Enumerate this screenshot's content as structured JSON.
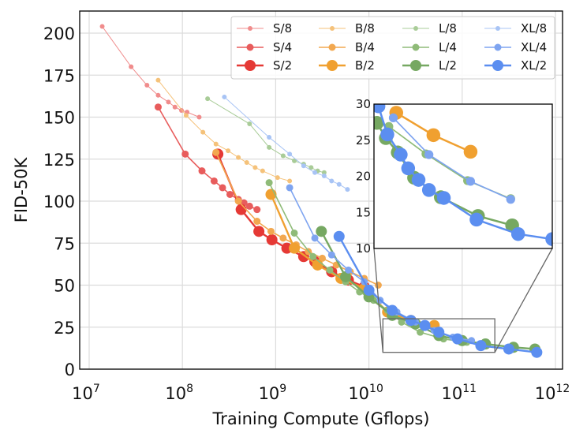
{
  "chart_data": {
    "type": "line",
    "title": "",
    "xlabel": "Training Compute (Gflops)",
    "ylabel": "FID-50K",
    "xscale": "log",
    "xlim": [
      10000000.0,
      1000000000000.0
    ],
    "ylim": [
      0,
      210
    ],
    "xticks": [
      7,
      8,
      9,
      10,
      11,
      12
    ],
    "xtick_labels": [
      "10^7",
      "10^8",
      "10^9",
      "10^10",
      "10^11",
      "10^12"
    ],
    "yticks": [
      0,
      25,
      50,
      75,
      100,
      125,
      150,
      175,
      200
    ],
    "ytick_labels": [
      "0",
      "25",
      "50",
      "75",
      "100",
      "125",
      "150",
      "175",
      "200"
    ],
    "grid": true,
    "legend": {
      "placement": "top-right",
      "columns": 4
    },
    "series": [
      {
        "name": "S/8",
        "color": "#f08c8c",
        "size": "small",
        "log10_x": [
          7.14,
          7.45,
          7.62,
          7.74,
          7.85,
          7.92,
          7.99,
          8.05,
          8.18
        ],
        "y": [
          204,
          180,
          169,
          163,
          159,
          156,
          154,
          153,
          150
        ]
      },
      {
        "name": "S/4",
        "color": "#e85c5c",
        "size": "medium",
        "log10_x": [
          7.74,
          8.03,
          8.21,
          8.34,
          8.43,
          8.51,
          8.6,
          8.66,
          8.72,
          8.8
        ],
        "y": [
          156,
          128,
          118,
          112,
          108,
          104,
          101,
          99,
          97,
          95
        ]
      },
      {
        "name": "S/2",
        "color": "#e53935",
        "size": "large",
        "log10_x": [
          8.38,
          8.63,
          8.82,
          8.96,
          9.12,
          9.3,
          9.42,
          9.6,
          9.78,
          9.95
        ],
        "y": [
          128,
          95,
          82,
          77,
          72,
          67,
          64,
          58,
          53,
          49
        ]
      },
      {
        "name": "B/8",
        "color": "#f5c27a",
        "size": "small",
        "log10_x": [
          7.74,
          8.04,
          8.22,
          8.36,
          8.49,
          8.6,
          8.69,
          8.78,
          8.86,
          9.02,
          9.15
        ],
        "y": [
          172,
          151,
          141,
          134,
          130,
          126,
          123,
          120,
          118,
          114,
          112
        ]
      },
      {
        "name": "B/4",
        "color": "#f2a850",
        "size": "medium",
        "log10_x": [
          8.36,
          8.6,
          8.8,
          8.95,
          9.08,
          9.22,
          9.35,
          9.5,
          9.65,
          9.8,
          9.95,
          10.1
        ],
        "y": [
          129,
          100,
          88,
          82,
          78,
          74,
          70,
          66,
          62,
          58,
          54,
          50
        ]
      },
      {
        "name": "B/2",
        "color": "#f0a030",
        "size": "large",
        "log10_x": [
          8.95,
          9.2,
          9.45,
          9.7,
          9.95,
          10.2,
          10.45,
          10.7
        ],
        "y": [
          104,
          72,
          62,
          54,
          48,
          34,
          29,
          26
        ]
      },
      {
        "name": "L/8",
        "color": "#a9cc98",
        "size": "small",
        "log10_x": [
          8.27,
          8.72,
          8.93,
          9.08,
          9.2,
          9.3,
          9.38,
          9.45,
          9.52
        ],
        "y": [
          161,
          146,
          132,
          127,
          124,
          122,
          120,
          118,
          117
        ]
      },
      {
        "name": "L/4",
        "color": "#8fbb78",
        "size": "medium",
        "log10_x": [
          8.93,
          9.2,
          9.4,
          9.58,
          9.75,
          9.9,
          10.05,
          10.2,
          10.35,
          10.55,
          10.8,
          11.05
        ],
        "y": [
          111,
          81,
          67,
          59,
          52,
          46,
          41,
          35,
          28,
          22,
          18,
          16
        ]
      },
      {
        "name": "L/2",
        "color": "#76a862",
        "size": "large",
        "log10_x": [
          9.49,
          9.75,
          10.0,
          10.25,
          10.5,
          10.75,
          11.0,
          11.25,
          11.55,
          11.78
        ],
        "y": [
          82,
          55,
          43,
          32,
          27,
          20,
          17,
          15,
          13,
          12
        ]
      },
      {
        "name": "XL/8",
        "color": "#a8c4f5",
        "size": "small",
        "log10_x": [
          8.45,
          8.93,
          9.15,
          9.3,
          9.42,
          9.52,
          9.6,
          9.68,
          9.77
        ],
        "y": [
          162,
          138,
          128,
          121,
          117,
          115,
          112,
          110,
          107
        ]
      },
      {
        "name": "XL/4",
        "color": "#7ea4f0",
        "size": "medium",
        "log10_x": [
          9.15,
          9.42,
          9.6,
          9.78,
          9.95,
          10.12,
          10.3,
          10.5,
          10.7,
          10.9,
          11.1
        ],
        "y": [
          108,
          78,
          68,
          59,
          52,
          41,
          34,
          28,
          23,
          19,
          17
        ]
      },
      {
        "name": "XL/2",
        "color": "#5b8ef0",
        "size": "large",
        "log10_x": [
          9.68,
          10.0,
          10.25,
          10.45,
          10.6,
          10.75,
          10.95,
          11.2,
          11.5,
          11.8
        ],
        "y": [
          79,
          47,
          35,
          29,
          26,
          22,
          18,
          14,
          12,
          10
        ]
      }
    ],
    "inset": {
      "xlim_log10": [
        10.15,
        11.35
      ],
      "ylim": [
        10,
        30
      ],
      "yticks": [
        10,
        15,
        20,
        25,
        30
      ],
      "ytick_labels": [
        "10",
        "15",
        "20",
        "25",
        "30"
      ],
      "series": [
        {
          "name": "B/2",
          "log10_x": [
            10.3,
            10.55,
            10.8
          ],
          "y": [
            28.8,
            25.7,
            23.4
          ]
        },
        {
          "name": "L/4",
          "log10_x": [
            10.25,
            10.5,
            10.78,
            11.07
          ],
          "y": [
            26.9,
            23.1,
            19.4,
            16.9
          ]
        },
        {
          "name": "XL/4",
          "log10_x": [
            10.28,
            10.52,
            10.8,
            11.07
          ],
          "y": [
            28.1,
            23.0,
            19.3,
            16.8
          ]
        },
        {
          "name": "L/2",
          "log10_x": [
            10.17,
            10.23,
            10.31,
            10.42,
            10.6,
            10.85,
            11.08
          ],
          "y": [
            27.4,
            25.3,
            23.3,
            19.8,
            17.1,
            14.5,
            13.2
          ]
        },
        {
          "name": "XL/2",
          "log10_x": [
            10.18,
            10.24,
            10.33,
            10.38,
            10.45,
            10.52,
            10.62,
            10.84,
            11.12,
            11.35
          ],
          "y": [
            29.7,
            25.8,
            23.0,
            21.1,
            19.5,
            18.1,
            17.0,
            14.0,
            12.0,
            11.3
          ]
        }
      ]
    }
  }
}
